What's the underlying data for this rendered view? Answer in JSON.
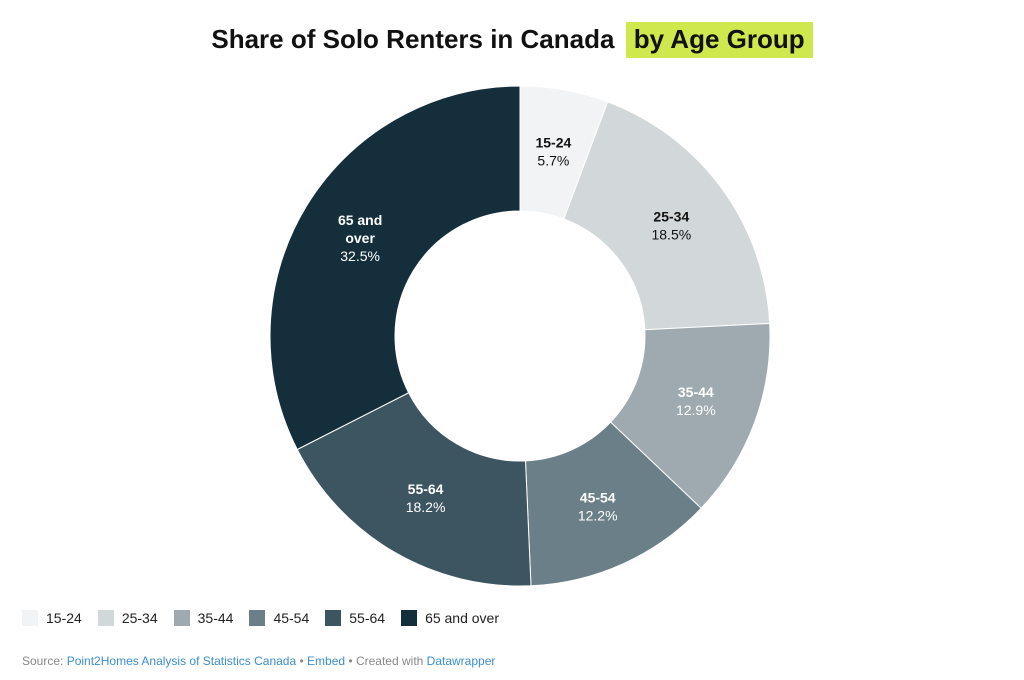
{
  "title": {
    "main": "Share of Solo Renters in Canada",
    "highlight": "by Age Group"
  },
  "colors": {
    "highlight_bg": "#cfe84e",
    "link": "#3b8ed0"
  },
  "chart_data": {
    "type": "pie",
    "variant": "donut",
    "categories": [
      "15-24",
      "25-34",
      "35-44",
      "45-54",
      "55-64",
      "65 and over"
    ],
    "values": [
      5.7,
      18.5,
      12.9,
      12.2,
      18.2,
      32.5
    ],
    "value_labels": [
      "5.7%",
      "18.5%",
      "12.9%",
      "12.2%",
      "18.2%",
      "32.5%"
    ],
    "colors": [
      "#f2f3f4",
      "#d2d7d9",
      "#9eaab0",
      "#6b7f88",
      "#3d5561",
      "#152e3c"
    ],
    "label_colors": [
      "#111111",
      "#111111",
      "#ffffff",
      "#ffffff",
      "#ffffff",
      "#ffffff"
    ],
    "legend_position": "bottom-left"
  },
  "legend": {
    "items": [
      "15-24",
      "25-34",
      "35-44",
      "45-54",
      "55-64",
      "65 and over"
    ]
  },
  "footer": {
    "source_prefix": "Source:",
    "source_link": "Point2Homes Analysis of Statistics Canada",
    "sep1": "•",
    "embed_link": "Embed",
    "sep2": "• Created with",
    "datawrapper_link": "Datawrapper"
  }
}
